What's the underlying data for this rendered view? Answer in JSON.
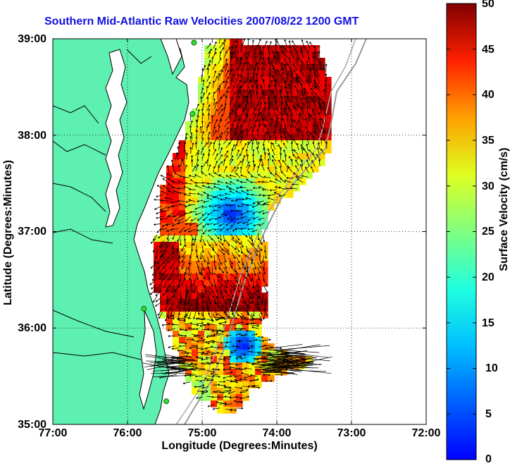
{
  "title": "Southern Mid-Atlantic Raw Velocities 2007/08/22 1200 GMT",
  "x_axis": {
    "label": "Longitude (Degrees:Minutes)",
    "ticks": [
      "77:00",
      "76:00",
      "75:00",
      "74:00",
      "73:00",
      "72:00"
    ]
  },
  "y_axis": {
    "label": "Latitude (Degrees:Minutes)",
    "ticks": [
      "39:00",
      "38:00",
      "37:00",
      "36:00",
      "35:00"
    ]
  },
  "colorbar": {
    "label": "Surface Velocity (cm/s)",
    "ticks": [
      "50",
      "45",
      "40",
      "35",
      "30",
      "25",
      "20",
      "15",
      "10",
      "5",
      "0"
    ],
    "min": 0,
    "max": 50,
    "colormap": "jet"
  },
  "colors": {
    "land": "#5ef0b0",
    "title_text": "#1010e0",
    "vector_arrows": "#000000",
    "grid": "#000000",
    "station_marker": "#33dd33"
  },
  "chart_data": {
    "type": "heatmap",
    "title": "Southern Mid-Atlantic Raw Velocities 2007/08/22 1200 GMT",
    "xlabel": "Longitude (Degrees:Minutes)",
    "ylabel": "Latitude (Degrees:Minutes)",
    "xlim": [
      -77,
      -72
    ],
    "ylim": [
      35,
      39
    ],
    "grid": "dotted",
    "colorbar_range": [
      0,
      50
    ],
    "colorbar_label": "Surface Velocity (cm/s)",
    "station_markers": [
      {
        "lon": -75.11,
        "lat": 38.96
      },
      {
        "lon": -75.13,
        "lat": 38.22
      },
      {
        "lon": -75.78,
        "lat": 36.2
      },
      {
        "lon": -75.48,
        "lat": 35.24
      }
    ]
  }
}
